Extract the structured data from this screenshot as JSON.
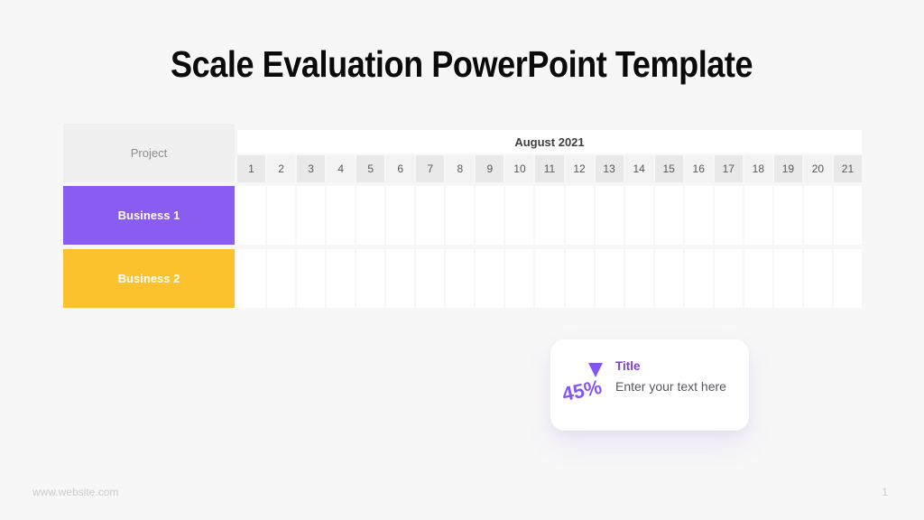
{
  "slide": {
    "title": "Scale Evaluation PowerPoint Template",
    "footer": {
      "website": "www.website.com",
      "page_number": "1"
    }
  },
  "table": {
    "project_header": "Project",
    "month_header": "August 2021",
    "days": [
      "1",
      "2",
      "3",
      "4",
      "5",
      "6",
      "7",
      "8",
      "9",
      "10",
      "11",
      "12",
      "13",
      "14",
      "15",
      "16",
      "17",
      "18",
      "19",
      "20",
      "21"
    ],
    "rows": [
      {
        "label": "Business 1",
        "color": "#8B5CF2"
      },
      {
        "label": "Business 2",
        "color": "#FCC22D"
      }
    ]
  },
  "card": {
    "icon": "triangle-down-icon",
    "percentage": "45%",
    "title": "Title",
    "description": "Enter your text here"
  },
  "colors": {
    "background": "#F7F7F7",
    "accent_purple": "#8B5CF2",
    "accent_yellow": "#FCC22D",
    "card_title_purple": "#7C3BED",
    "percent_purple": "#8455F0",
    "day_header_odd": "#E9E9E9",
    "day_header_even": "#F3F3F3",
    "day_text": "#595959",
    "muted_text": "#8C8C8C",
    "footer_text": "#CCCCCC"
  }
}
